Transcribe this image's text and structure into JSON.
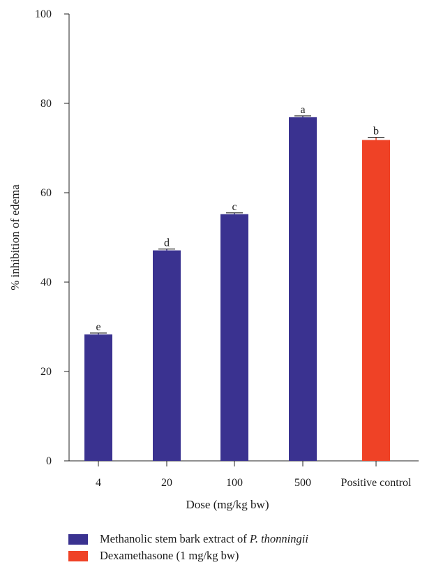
{
  "chart_data": {
    "type": "bar",
    "categories": [
      "4",
      "20",
      "100",
      "500",
      "Positive control"
    ],
    "values": [
      28.3,
      47.1,
      55.2,
      76.9,
      71.8
    ],
    "errors": [
      0.3,
      0.3,
      0.3,
      0.3,
      0.6
    ],
    "significance_labels": [
      "e",
      "d",
      "c",
      "a",
      "b"
    ],
    "bar_series": [
      "extract",
      "extract",
      "extract",
      "extract",
      "control"
    ],
    "xlabel": "Dose (mg/kg bw)",
    "ylabel": "% inhibition of edema",
    "ylim": [
      0,
      100
    ],
    "yticks": [
      0,
      20,
      40,
      60,
      80,
      100
    ],
    "grid": false,
    "legend_position": "bottom-left",
    "colors": {
      "extract": "#3a3290",
      "control": "#ef4226"
    },
    "series": [
      {
        "key": "extract",
        "name_prefix": "Methanolic stem bark extract of ",
        "name_italic": "P. thonningii"
      },
      {
        "key": "control",
        "name": "Dexamethasone (1 mg/kg bw)"
      }
    ]
  }
}
